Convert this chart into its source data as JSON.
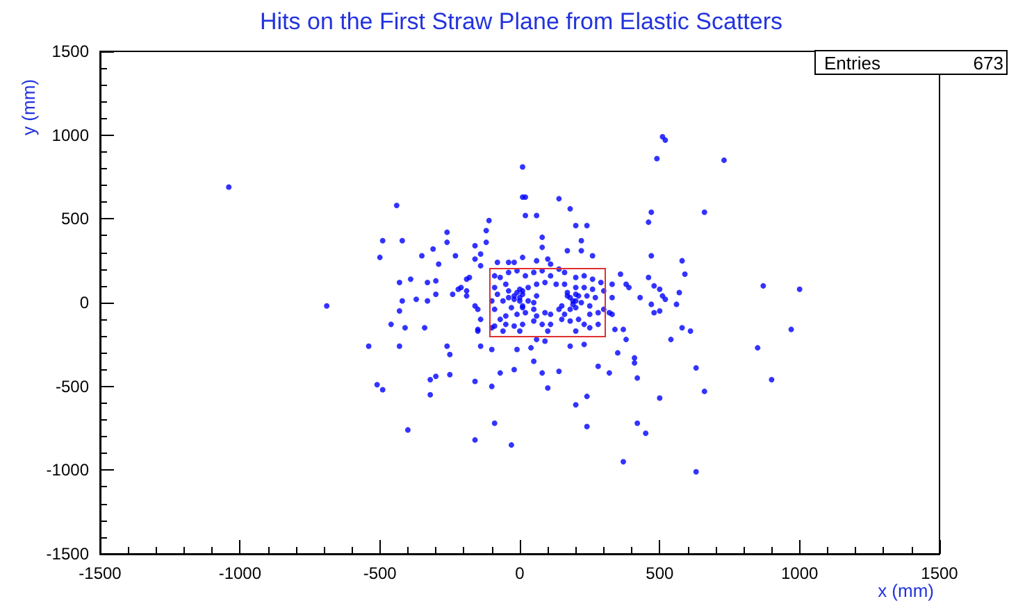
{
  "chart_data": {
    "type": "scatter",
    "title": "Hits on the First Straw Plane from Elastic Scatters",
    "xlabel": "x (mm)",
    "ylabel": "y (mm)",
    "annotations": [
      "Entries",
      "673"
    ],
    "xlim": [
      -1500,
      1500
    ],
    "xticks": [
      -1500,
      -1000,
      -500,
      0,
      500,
      1000,
      1500
    ],
    "ylim": [
      -1500,
      1500
    ],
    "yticks": [
      -1500,
      -1000,
      -500,
      0,
      500,
      1000,
      1500
    ],
    "marker": "circle",
    "series": [
      {
        "color": "#0000ff",
        "x": [
          -1040,
          10,
          10,
          20,
          140,
          -440,
          20,
          60,
          180,
          -110,
          -260,
          -120,
          200,
          240,
          -490,
          -420,
          -260,
          -160,
          -120,
          80,
          220,
          80,
          -310,
          -500,
          -350,
          -290,
          -230,
          -160,
          -430,
          -390,
          -330,
          -300,
          -220,
          -210,
          -190,
          -690,
          -420,
          -370,
          -330,
          -300,
          -240,
          -430,
          -160,
          -80,
          -20,
          10,
          60,
          170,
          220,
          110,
          260,
          -460,
          -410,
          -340,
          -150,
          -540,
          -430,
          -260,
          -250,
          -140,
          -100,
          -10,
          40,
          90,
          50,
          180,
          230,
          -70,
          -20,
          80,
          140,
          -300,
          -320,
          -250,
          -160,
          -100,
          -510,
          -490,
          -320,
          100,
          200,
          240,
          240,
          -400,
          -90,
          -160,
          -30,
          510,
          520,
          490,
          730,
          470,
          460,
          660,
          470,
          580,
          590,
          460,
          480,
          500,
          380,
          390,
          360,
          430,
          510,
          520,
          570,
          870,
          1000,
          470,
          500,
          480,
          560,
          320,
          340,
          370,
          380,
          580,
          610,
          540,
          970,
          350,
          410,
          410,
          320,
          850,
          630,
          420,
          900,
          660,
          500,
          420,
          450,
          370,
          630,
          280,
          -90,
          -70,
          -40,
          -10,
          20,
          50,
          80,
          110,
          140,
          160,
          200,
          230,
          260,
          290,
          -90,
          -80,
          -50,
          -40,
          -20,
          0,
          10,
          30,
          10,
          -30,
          -60,
          -90,
          -70,
          -50,
          -10,
          20,
          50,
          60,
          90,
          110,
          140,
          160,
          200,
          170,
          190,
          200,
          220,
          240,
          250,
          270,
          280,
          250,
          210,
          180,
          150,
          110,
          80,
          50,
          10,
          -20,
          -50,
          -90,
          -100,
          60,
          90,
          130,
          160,
          200,
          230,
          260,
          300,
          300,
          30,
          60,
          280,
          -60,
          0,
          100,
          200,
          250,
          -100,
          50,
          0,
          -40,
          10,
          150,
          180,
          230,
          -140,
          -180,
          -190,
          -190,
          -150,
          -140,
          -150,
          60,
          330,
          330,
          330,
          100,
          -40,
          -140,
          -10,
          0,
          -20,
          10,
          180,
          200,
          170,
          210,
          190
        ],
        "values": [
          690,
          810,
          630,
          630,
          620,
          580,
          520,
          520,
          560,
          490,
          420,
          430,
          460,
          460,
          370,
          370,
          360,
          340,
          360,
          390,
          370,
          330,
          320,
          270,
          280,
          230,
          280,
          260,
          120,
          140,
          120,
          130,
          80,
          90,
          140,
          -20,
          10,
          20,
          10,
          50,
          50,
          -50,
          -20,
          240,
          240,
          270,
          250,
          310,
          310,
          230,
          280,
          -130,
          -150,
          -150,
          -160,
          -260,
          -260,
          -260,
          -310,
          -260,
          -280,
          -280,
          -270,
          -230,
          -350,
          -260,
          -250,
          -420,
          -400,
          -420,
          -410,
          -440,
          -460,
          -430,
          -470,
          -500,
          -490,
          -520,
          -550,
          -510,
          -610,
          -560,
          -740,
          -760,
          -720,
          -820,
          -850,
          990,
          970,
          860,
          850,
          540,
          480,
          540,
          280,
          250,
          170,
          150,
          100,
          80,
          110,
          90,
          170,
          30,
          40,
          20,
          60,
          100,
          80,
          -10,
          -50,
          -60,
          -10,
          -60,
          -160,
          -160,
          -220,
          -150,
          -170,
          -220,
          -160,
          -300,
          -330,
          -360,
          -420,
          -270,
          -390,
          -450,
          -460,
          -530,
          -570,
          -720,
          -780,
          -950,
          -1010,
          -380,
          160,
          150,
          180,
          190,
          160,
          180,
          190,
          160,
          200,
          180,
          150,
          160,
          140,
          120,
          90,
          50,
          110,
          70,
          40,
          10,
          50,
          90,
          -20,
          -30,
          10,
          -40,
          -100,
          -80,
          -70,
          -60,
          -40,
          -80,
          -60,
          -70,
          -40,
          -70,
          -30,
          40,
          10,
          50,
          0,
          40,
          -20,
          30,
          -60,
          -70,
          -100,
          -110,
          -100,
          -130,
          -130,
          -110,
          -130,
          -140,
          -130,
          -140,
          10,
          110,
          120,
          110,
          110,
          90,
          90,
          80,
          70,
          -40,
          10,
          40,
          -130,
          -170,
          -170,
          -170,
          -170,
          -150,
          -150,
          0,
          80,
          30,
          -30,
          -20,
          -40,
          -130,
          220,
          150,
          70,
          40,
          -40,
          -100,
          -170,
          -220,
          110,
          30,
          -70,
          260,
          240,
          290,
          60,
          30,
          20,
          70,
          30,
          10,
          60,
          40,
          -10
        ]
      }
    ]
  }
}
